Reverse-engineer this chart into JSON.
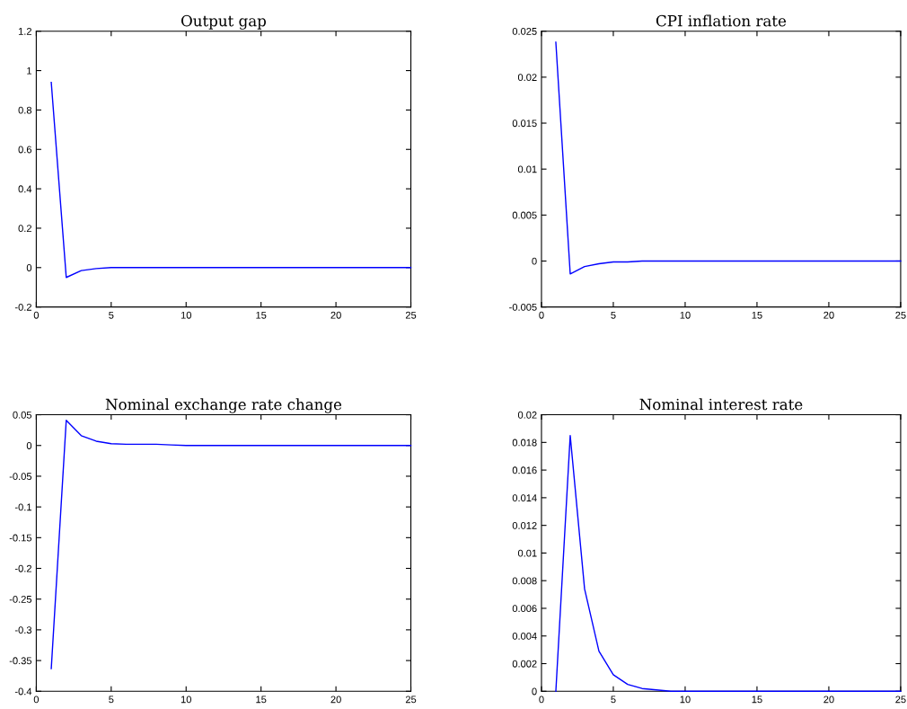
{
  "chart_data": [
    {
      "type": "line",
      "title": "Output gap",
      "x": [
        1,
        2,
        3,
        4,
        5,
        6,
        7,
        8,
        9,
        10,
        11,
        12,
        13,
        14,
        15,
        16,
        17,
        18,
        19,
        20,
        21,
        22,
        23,
        24,
        25
      ],
      "series": [
        {
          "color": "#0000ff",
          "values": [
            0.94,
            -0.05,
            -0.015,
            -0.005,
            0,
            0,
            0,
            0,
            0,
            0,
            0,
            0,
            0,
            0,
            0,
            0,
            0,
            0,
            0,
            0,
            0,
            0,
            0,
            0,
            0
          ]
        }
      ],
      "xlim": [
        0,
        25
      ],
      "xticks": [
        0,
        5,
        10,
        15,
        20,
        25
      ],
      "ylim": [
        -0.2,
        1.2
      ],
      "yticks": [
        -0.2,
        0,
        0.2,
        0.4,
        0.6,
        0.8,
        1,
        1.2
      ],
      "grid": false
    },
    {
      "type": "line",
      "title": "CPI inflation rate",
      "x": [
        1,
        2,
        3,
        4,
        5,
        6,
        7,
        8,
        9,
        10,
        11,
        12,
        13,
        14,
        15,
        16,
        17,
        18,
        19,
        20,
        21,
        22,
        23,
        24,
        25
      ],
      "series": [
        {
          "color": "#0000ff",
          "values": [
            0.0238,
            -0.0014,
            -0.0006,
            -0.0003,
            -0.0001,
            -0.0001,
            0,
            0,
            0,
            0,
            0,
            0,
            0,
            0,
            0,
            0,
            0,
            0,
            0,
            0,
            0,
            0,
            0,
            0,
            0
          ]
        }
      ],
      "xlim": [
        0,
        25
      ],
      "xticks": [
        0,
        5,
        10,
        15,
        20,
        25
      ],
      "ylim": [
        -0.005,
        0.025
      ],
      "yticks": [
        -0.005,
        0,
        0.005,
        0.01,
        0.015,
        0.02,
        0.025
      ],
      "grid": false
    },
    {
      "type": "line",
      "title": "Nominal exchange rate change",
      "x": [
        1,
        2,
        3,
        4,
        5,
        6,
        7,
        8,
        9,
        10,
        11,
        12,
        13,
        14,
        15,
        16,
        17,
        18,
        19,
        20,
        21,
        22,
        23,
        24,
        25
      ],
      "series": [
        {
          "color": "#0000ff",
          "values": [
            -0.363,
            0.041,
            0.016,
            0.007,
            0.003,
            0.002,
            0.002,
            0.002,
            0.001,
            0,
            0,
            0,
            0,
            0,
            0,
            0,
            0,
            0,
            0,
            0,
            0,
            0,
            0,
            0,
            0
          ]
        }
      ],
      "xlim": [
        0,
        25
      ],
      "xticks": [
        0,
        5,
        10,
        15,
        20,
        25
      ],
      "ylim": [
        -0.4,
        0.05
      ],
      "yticks": [
        -0.4,
        -0.35,
        -0.3,
        -0.25,
        -0.2,
        -0.15,
        -0.1,
        -0.05,
        0,
        0.05
      ],
      "grid": false
    },
    {
      "type": "line",
      "title": "Nominal interest rate",
      "x": [
        1,
        2,
        3,
        4,
        5,
        6,
        7,
        8,
        9,
        10,
        11,
        12,
        13,
        14,
        15,
        16,
        17,
        18,
        19,
        20,
        21,
        22,
        23,
        24,
        25
      ],
      "series": [
        {
          "color": "#0000ff",
          "values": [
            0,
            0.0185,
            0.0074,
            0.0029,
            0.0012,
            0.0005,
            0.0002,
            0.0001,
            0,
            0,
            0,
            0,
            0,
            0,
            0,
            0,
            0,
            0,
            0,
            0,
            0,
            0,
            0,
            0,
            0
          ]
        }
      ],
      "xlim": [
        0,
        25
      ],
      "xticks": [
        0,
        5,
        10,
        15,
        20,
        25
      ],
      "ylim": [
        0,
        0.02
      ],
      "yticks": [
        0,
        0.002,
        0.004,
        0.006,
        0.008,
        0.01,
        0.012,
        0.014,
        0.016,
        0.018,
        0.02
      ],
      "grid": false
    }
  ]
}
